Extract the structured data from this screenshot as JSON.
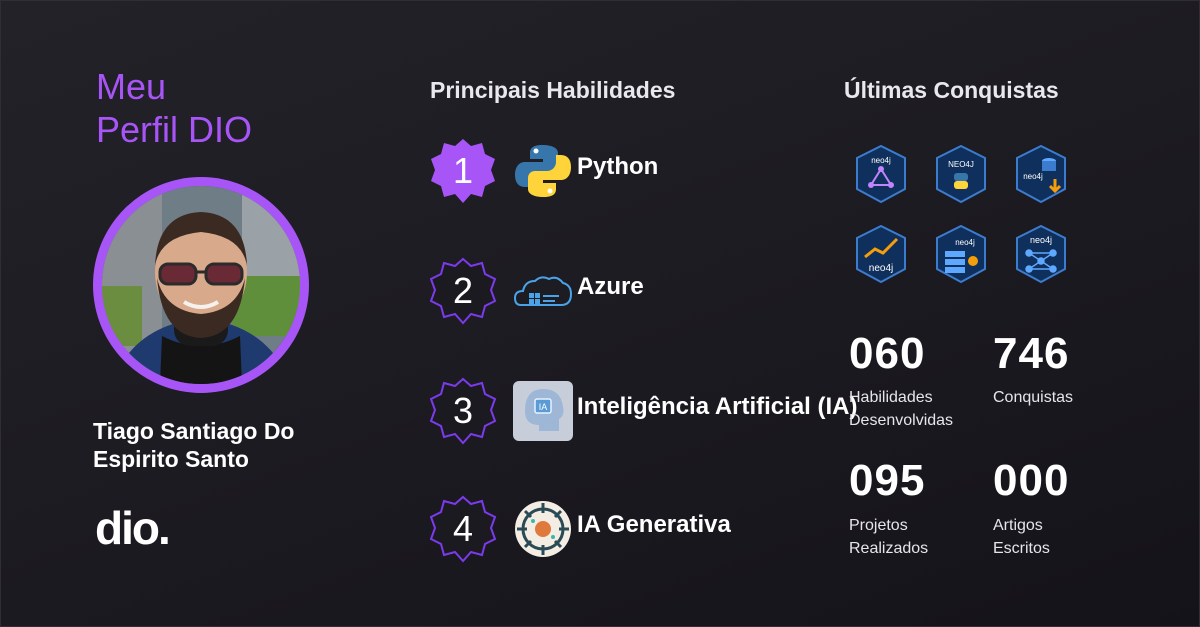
{
  "profile": {
    "title_line1": "Meu",
    "title_line2": "Perfil DIO",
    "name_line1": "Tiago Santiago Do",
    "name_line2": "Espirito Santo",
    "logo_text": "dio.",
    "accent_color": "#a855f7"
  },
  "skills": {
    "heading": "Principais Habilidades",
    "items": [
      {
        "rank": "1",
        "label": "Python",
        "icon": "python-icon",
        "active": true
      },
      {
        "rank": "2",
        "label": "Azure",
        "icon": "azure-icon",
        "active": false
      },
      {
        "rank": "3",
        "label": "Inteligência Artificial (IA)",
        "icon": "ai-head-icon",
        "active": false
      },
      {
        "rank": "4",
        "label": "IA Generativa",
        "icon": "generative-ai-icon",
        "active": false
      }
    ]
  },
  "achievements": {
    "heading": "Últimas Conquistas",
    "badges": [
      {
        "icon": "neo4j-graph-badge-icon",
        "text": "neo4j"
      },
      {
        "icon": "neo4j-python-badge-icon",
        "text": "NEO4J"
      },
      {
        "icon": "neo4j-import-badge-icon",
        "text": "neo4j"
      },
      {
        "icon": "neo4j-chart-badge-icon",
        "text": "neo4j"
      },
      {
        "icon": "neo4j-server-badge-icon",
        "text": "neo4j"
      },
      {
        "icon": "neo4j-network-badge-icon",
        "text": "neo4j"
      }
    ]
  },
  "stats": {
    "skills_developed": {
      "value": "060",
      "label_line1": "Habilidades",
      "label_line2": "Desenvolvidas"
    },
    "achievements": {
      "value": "746",
      "label_line1": "Conquistas",
      "label_line2": ""
    },
    "projects": {
      "value": "095",
      "label_line1": "Projetos",
      "label_line2": "Realizados"
    },
    "articles": {
      "value": "000",
      "label_line1": "Artigos",
      "label_line2": "Escritos"
    }
  }
}
